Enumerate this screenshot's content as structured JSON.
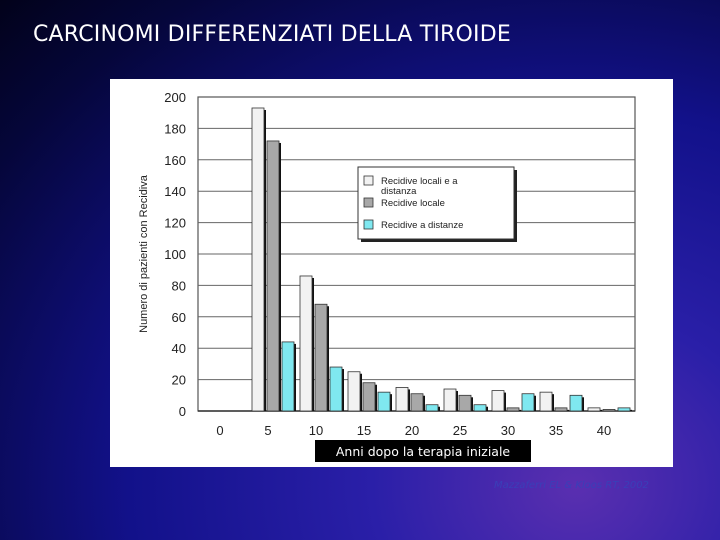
{
  "slide": {
    "title": "CARCINOMI DIFFERENZIATI DELLA TIROIDE",
    "citation": "Mazzaferri EL & Kloos RT, 2002"
  },
  "chart_data": {
    "type": "bar",
    "ylabel": "Numero di pazienti con Recidiva",
    "xlabel": "Anni dopo la terapia iniziale",
    "ylim": [
      0,
      200
    ],
    "yticks": [
      0,
      20,
      40,
      60,
      80,
      100,
      120,
      140,
      160,
      180,
      200
    ],
    "xtick_labels": [
      "0",
      "5",
      "10",
      "15",
      "20",
      "25",
      "30",
      "35",
      "40"
    ],
    "grid": true,
    "legend_position": "top-right",
    "categories": [
      "5",
      "10",
      "15",
      "20",
      "25",
      "30",
      "35",
      "40"
    ],
    "series": [
      {
        "name": "Recidive locali e a distanza",
        "color": "#f2f2f2",
        "values": [
          193,
          86,
          25,
          15,
          14,
          13,
          12,
          2
        ]
      },
      {
        "name": "Recidive locale",
        "color": "#a8a8a8",
        "values": [
          172,
          68,
          18,
          11,
          10,
          2,
          2,
          1
        ]
      },
      {
        "name": "Recidive a distanze",
        "color": "#7fe8f0",
        "values": [
          44,
          28,
          12,
          4,
          4,
          11,
          10,
          2
        ]
      }
    ]
  }
}
